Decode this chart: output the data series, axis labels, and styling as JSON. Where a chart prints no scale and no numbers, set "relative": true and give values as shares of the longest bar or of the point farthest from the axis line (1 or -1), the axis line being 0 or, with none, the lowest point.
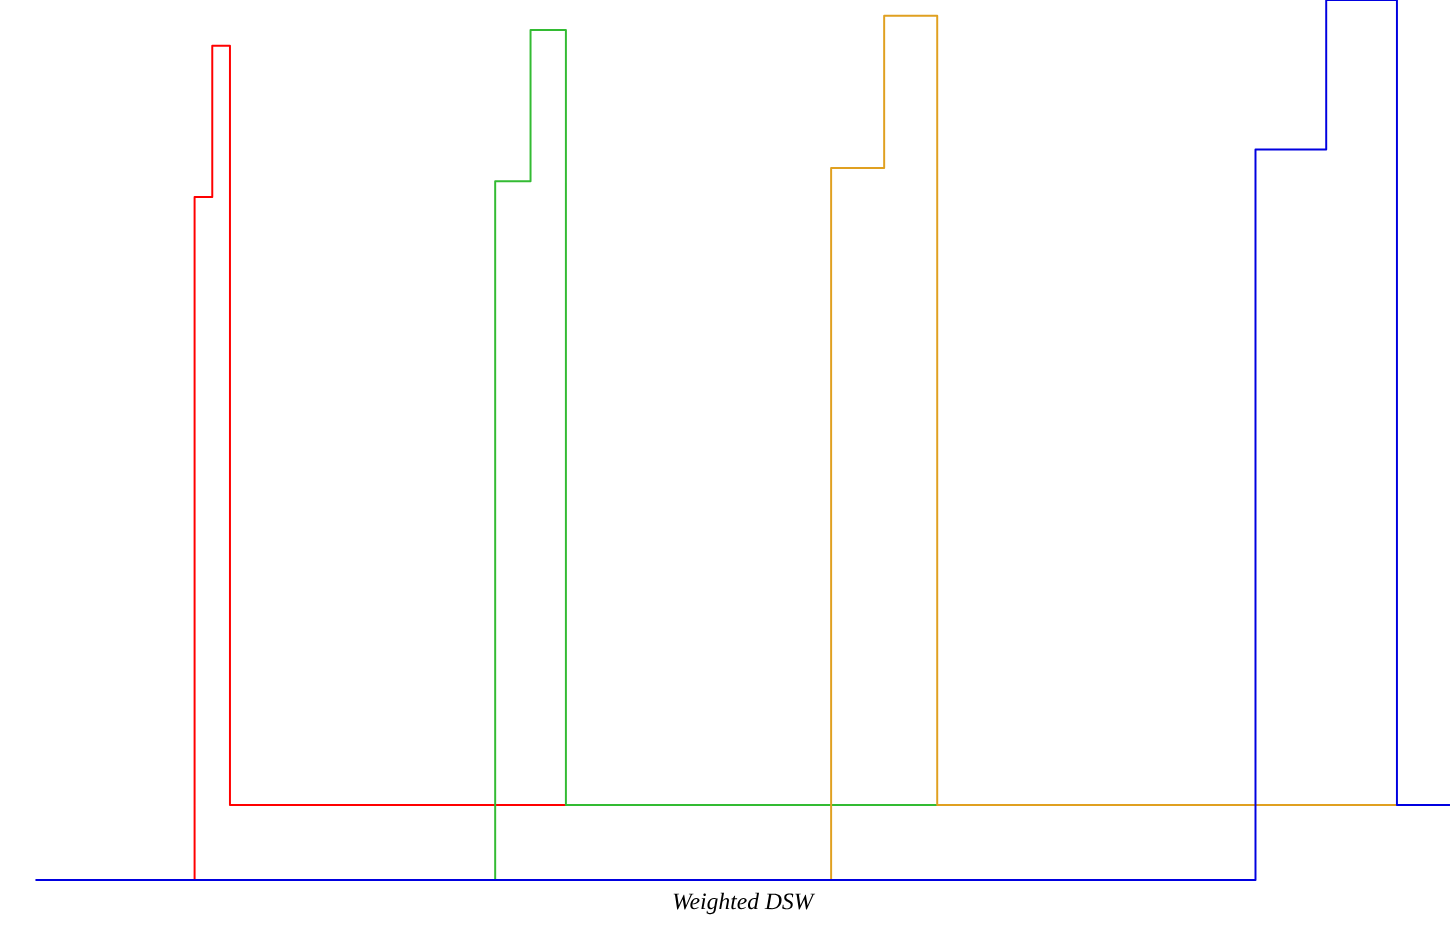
{
  "chart_data": {
    "type": "step",
    "relative": true,
    "xlabel": "Weighted DSW",
    "categories": [
      null,
      null,
      null,
      null,
      null,
      null,
      null,
      null,
      null,
      null,
      null,
      null,
      null,
      null,
      null,
      null,
      null,
      null,
      null,
      null,
      null,
      null,
      null,
      null,
      null,
      null,
      null,
      null,
      null,
      null,
      null,
      null,
      null,
      null,
      null,
      null,
      null,
      null,
      null,
      null,
      null,
      null,
      null,
      null,
      null,
      null,
      null,
      null,
      null,
      null,
      null,
      null,
      null,
      null,
      null,
      null,
      null,
      null,
      null,
      null,
      null,
      null,
      null,
      null,
      null,
      null,
      null,
      null,
      null,
      null,
      null,
      null,
      null,
      null,
      null,
      null,
      null,
      null,
      null,
      null,
      null
    ],
    "series": [
      {
        "color": "#ff0000",
        "values": [
          null,
          null,
          null,
          null,
          null,
          null,
          null,
          null,
          0,
          0.776,
          0.948,
          0.085,
          0.085,
          0.085,
          0.085,
          0.085,
          0.085,
          0.085,
          0.085,
          0.085,
          0.085,
          0.085,
          0.085,
          0.085,
          0.085,
          0.085,
          0.085,
          0.085,
          0.085,
          0.085,
          0.085,
          null,
          null,
          null,
          null,
          null,
          null,
          null,
          null,
          null,
          null,
          null,
          null,
          null,
          null,
          null,
          null,
          null,
          null,
          null,
          null,
          null,
          null,
          null,
          null,
          null,
          null,
          null,
          null,
          null,
          null,
          null,
          null,
          null,
          null,
          null,
          null,
          null,
          null,
          null,
          null,
          null,
          null,
          null,
          null,
          null,
          null,
          null,
          null,
          null,
          null
        ]
      },
      {
        "color": "#33bb33",
        "values": [
          null,
          null,
          null,
          null,
          null,
          null,
          null,
          null,
          null,
          null,
          null,
          null,
          null,
          null,
          null,
          null,
          null,
          null,
          null,
          null,
          null,
          null,
          null,
          null,
          null,
          0,
          0.794,
          0.794,
          0.966,
          0.966,
          0.085,
          0.085,
          0.085,
          0.085,
          0.085,
          0.085,
          0.085,
          0.085,
          0.085,
          0.085,
          0.085,
          0.085,
          0.085,
          0.085,
          0.085,
          0.085,
          0.085,
          0.085,
          0.085,
          0.085,
          0.085,
          0.085,
          null,
          null,
          null,
          null,
          null,
          null,
          null,
          null,
          null,
          null,
          null,
          null,
          null,
          null,
          null,
          null,
          null,
          null,
          null,
          null,
          null,
          null,
          null,
          null,
          null,
          null,
          null,
          null,
          null
        ]
      },
      {
        "color": "#e0a020",
        "values": [
          null,
          null,
          null,
          null,
          null,
          null,
          null,
          null,
          null,
          null,
          null,
          null,
          null,
          null,
          null,
          null,
          null,
          null,
          null,
          null,
          null,
          null,
          null,
          null,
          null,
          null,
          null,
          null,
          null,
          null,
          null,
          null,
          null,
          null,
          null,
          null,
          null,
          null,
          null,
          null,
          null,
          null,
          null,
          null,
          0,
          0.809,
          0.809,
          0.809,
          0.982,
          0.982,
          0.982,
          0.085,
          0.085,
          0.085,
          0.085,
          0.085,
          0.085,
          0.085,
          0.085,
          0.085,
          0.085,
          0.085,
          0.085,
          0.085,
          0.085,
          0.085,
          0.085,
          0.085,
          0.085,
          0.085,
          0.085,
          0.085,
          0.085,
          0.085,
          0.085,
          0.085,
          0.085,
          0.085,
          null,
          null,
          null
        ]
      },
      {
        "color": "#0000e0",
        "values": [
          0,
          0,
          0,
          0,
          0,
          0,
          0,
          0,
          0,
          0,
          0,
          0,
          0,
          0,
          0,
          0,
          0,
          0,
          0,
          0,
          0,
          0,
          0,
          0,
          0,
          0,
          0,
          0,
          0,
          0,
          0,
          0,
          0,
          0,
          0,
          0,
          0,
          0,
          0,
          0,
          0,
          0,
          0,
          0,
          0,
          0,
          0,
          0,
          0,
          0,
          0,
          0,
          0,
          0,
          0,
          0,
          0,
          0,
          0,
          0,
          0,
          0,
          0,
          0,
          0,
          0,
          0,
          0,
          0,
          0.83,
          0.83,
          0.83,
          0.83,
          1,
          1,
          1,
          1,
          0.085,
          0.085,
          0.085,
          0.085
        ]
      }
    ]
  }
}
